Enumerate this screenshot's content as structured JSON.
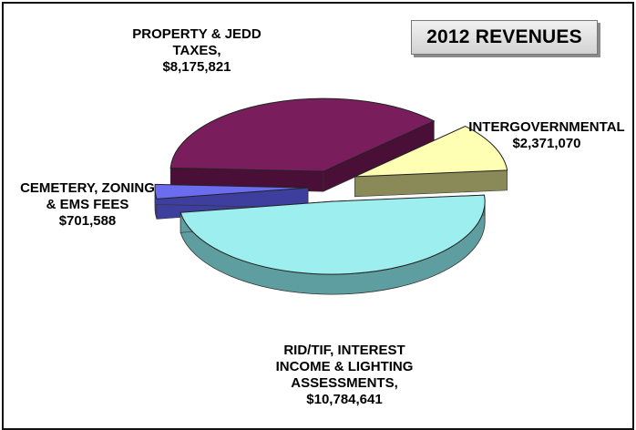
{
  "chart_data": {
    "type": "pie",
    "title": "2012 REVENUES",
    "categories": [
      "RID/TIF, INTEREST INCOME & LIGHTING ASSESSMENTS,",
      "CEMETERY, ZONING & EMS FEES",
      "PROPERTY & JEDD TAXES,",
      "INTERGOVERNMENTAL"
    ],
    "values": [
      10784641,
      701588,
      8175821,
      2371070
    ],
    "value_labels": [
      "$10,784,641",
      "$701,588",
      "$8,175,821",
      "$2,371,070"
    ],
    "label_lines": [
      [
        "RID/TIF, INTEREST",
        "INCOME & LIGHTING",
        "ASSESSMENTS,",
        "$10,784,641"
      ],
      [
        "CEMETERY, ZONING",
        "& EMS FEES",
        "$701,588"
      ],
      [
        "PROPERTY & JEDD",
        "TAXES,",
        "$8,175,821"
      ],
      [
        "INTERGOVERNMENTAL",
        "$2,371,070"
      ]
    ],
    "colors": [
      "#9deeee",
      "#6c6cf0",
      "#7a1d5c",
      "#ffffb4"
    ],
    "side_colors": [
      "#5f9ea0",
      "#3e3e9e",
      "#4a0f37",
      "#8a8a58"
    ],
    "exploded": true,
    "style": "3d"
  }
}
